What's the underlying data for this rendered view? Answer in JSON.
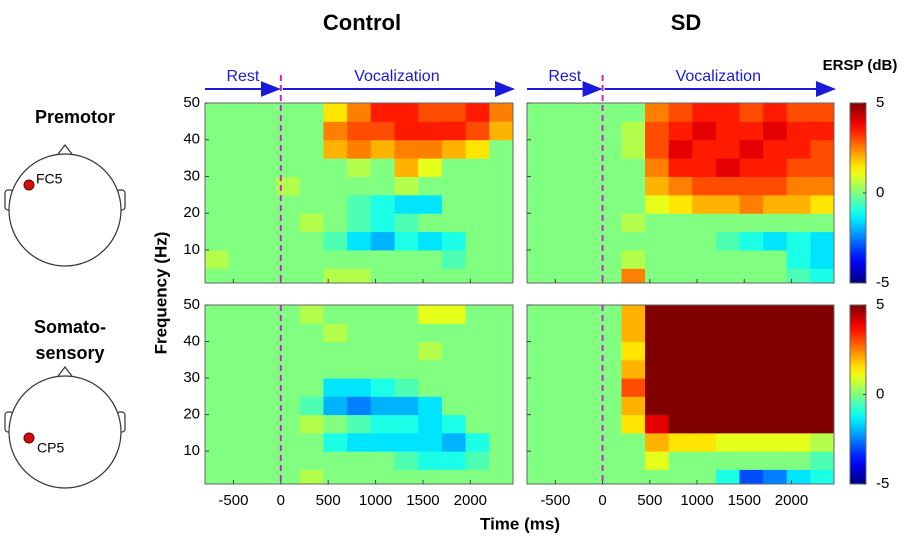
{
  "column_titles": [
    "Control",
    "SD"
  ],
  "row_labels": [
    {
      "lines": [
        "Premotor"
      ],
      "electrode": "FC5"
    },
    {
      "lines": [
        "Somato-",
        "sensory"
      ],
      "electrode": "CP5"
    }
  ],
  "phase_labels": [
    "Rest",
    "Vocalization"
  ],
  "x_label": "Time (ms)",
  "y_label": "Frequency (Hz)",
  "colorbar_title": "ERSP (dB)",
  "colorscale": {
    "clim": [
      -5,
      5
    ],
    "ticks": [
      -5,
      0,
      5
    ],
    "map": "jet"
  },
  "event_time": 0,
  "chart_data": [
    {
      "type": "heatmap",
      "xlim": [
        -800,
        2450
      ],
      "ylim": [
        1,
        50
      ],
      "xticks": [
        -500,
        0,
        500,
        1000,
        1500,
        2000
      ],
      "yticks": [
        10,
        20,
        30,
        40,
        50
      ],
      "xtick_labels": false,
      "ytick_labels": true,
      "colorbar": false,
      "phase_arrows": true,
      "xbins": [
        -800,
        -550,
        -300,
        -50,
        200,
        450,
        700,
        950,
        1200,
        1450,
        1700,
        1950,
        2200,
        2450
      ],
      "ybins": [
        1,
        5,
        10,
        15,
        20,
        25,
        30,
        35,
        40,
        45,
        50
      ],
      "values": [
        [
          0,
          0,
          0,
          0,
          0,
          0.5,
          0.5,
          0,
          0,
          0,
          0,
          0,
          0
        ],
        [
          0.5,
          0,
          0,
          0,
          0,
          0,
          0,
          0,
          0,
          0,
          -0.5,
          0,
          0
        ],
        [
          0,
          0,
          0,
          0,
          0,
          -0.5,
          -1.5,
          -2,
          -1,
          -1.5,
          -1,
          0,
          0
        ],
        [
          0,
          0,
          0,
          0,
          0.5,
          0,
          -0.5,
          -1,
          -0.5,
          0,
          0,
          0,
          0
        ],
        [
          0,
          0,
          0,
          0,
          0,
          0,
          -0.5,
          -1,
          -1.5,
          -1.5,
          0,
          0,
          0
        ],
        [
          0,
          0,
          0,
          0.5,
          0,
          0,
          0,
          0,
          0.5,
          0,
          0,
          0,
          0
        ],
        [
          0,
          0,
          0,
          0,
          0,
          0,
          0.5,
          0,
          2,
          1,
          0,
          0,
          0
        ],
        [
          0,
          0,
          0,
          0,
          0,
          2,
          2.5,
          2,
          2.5,
          2.5,
          2,
          1.5,
          0
        ],
        [
          0,
          0,
          0,
          0,
          0,
          2.5,
          3,
          3,
          3.5,
          3.5,
          3.5,
          3,
          2
        ],
        [
          0,
          0,
          0,
          0,
          0,
          1.5,
          2.5,
          3.5,
          3.5,
          3,
          3,
          3.5,
          2.5
        ]
      ]
    },
    {
      "type": "heatmap",
      "xlim": [
        -800,
        2450
      ],
      "ylim": [
        1,
        50
      ],
      "xticks": [
        -500,
        0,
        500,
        1000,
        1500,
        2000
      ],
      "yticks": [
        10,
        20,
        30,
        40,
        50
      ],
      "xtick_labels": false,
      "ytick_labels": false,
      "colorbar": true,
      "phase_arrows": true,
      "xbins": [
        -800,
        -550,
        -300,
        -50,
        200,
        450,
        700,
        950,
        1200,
        1450,
        1700,
        1950,
        2200,
        2450
      ],
      "ybins": [
        1,
        5,
        10,
        15,
        20,
        25,
        30,
        35,
        40,
        45,
        50
      ],
      "values": [
        [
          0,
          0,
          0,
          0,
          2.5,
          0,
          0,
          0,
          0,
          0,
          0,
          -0.5,
          -1
        ],
        [
          0,
          0,
          0,
          0,
          0.5,
          0,
          0,
          0,
          0,
          0,
          0,
          -1,
          -1.5
        ],
        [
          0,
          0,
          0,
          0,
          0,
          0,
          0,
          0,
          -0.5,
          -1,
          -1.5,
          -1,
          -1.5
        ],
        [
          0,
          0,
          0,
          0,
          0.5,
          0,
          0,
          0,
          0,
          0,
          0,
          0,
          0
        ],
        [
          0,
          0,
          0,
          0,
          0,
          1,
          1.5,
          2,
          2,
          2.5,
          2,
          2,
          1.5
        ],
        [
          0,
          0,
          0,
          0,
          0,
          2,
          2.5,
          3,
          3,
          3,
          3,
          2.5,
          2.5
        ],
        [
          0,
          0,
          0,
          0,
          0,
          2.5,
          3.5,
          3.5,
          4,
          3.5,
          3.5,
          3,
          3
        ],
        [
          0,
          0,
          0,
          0,
          0.5,
          3,
          4,
          3.5,
          3.5,
          4,
          3.5,
          3.5,
          3
        ],
        [
          0,
          0,
          0,
          0,
          0.5,
          3,
          3.5,
          4,
          3.5,
          3.5,
          4,
          3.5,
          3.5
        ],
        [
          0,
          0,
          0,
          0,
          0,
          2.5,
          3,
          3.5,
          3.5,
          3,
          3.5,
          3,
          3
        ]
      ]
    },
    {
      "type": "heatmap",
      "xlim": [
        -800,
        2450
      ],
      "ylim": [
        1,
        50
      ],
      "xticks": [
        -500,
        0,
        500,
        1000,
        1500,
        2000
      ],
      "yticks": [
        10,
        20,
        30,
        40,
        50
      ],
      "xtick_labels": true,
      "ytick_labels": true,
      "colorbar": false,
      "phase_arrows": false,
      "xbins": [
        -800,
        -550,
        -300,
        -50,
        200,
        450,
        700,
        950,
        1200,
        1450,
        1700,
        1950,
        2200,
        2450
      ],
      "ybins": [
        1,
        5,
        10,
        15,
        20,
        25,
        30,
        35,
        40,
        45,
        50
      ],
      "values": [
        [
          0,
          0,
          0,
          0,
          0.5,
          0,
          0,
          0,
          0,
          0,
          0,
          0,
          0
        ],
        [
          0,
          0,
          0,
          0,
          0,
          0,
          0,
          0,
          -0.5,
          -1,
          -1,
          -0.5,
          0
        ],
        [
          0,
          0,
          0,
          0,
          0,
          -1,
          -1.5,
          -1.5,
          -1.5,
          -1.5,
          -2,
          -1,
          0
        ],
        [
          0,
          0,
          0,
          0,
          0.5,
          0,
          -0.5,
          -1,
          -1,
          -1.5,
          -1,
          0,
          0
        ],
        [
          0,
          0,
          0,
          0,
          -0.5,
          -2,
          -2.5,
          -2,
          -2,
          -1.5,
          0,
          0,
          0
        ],
        [
          0,
          0,
          0,
          0,
          0,
          -1.5,
          -1.5,
          -1,
          -0.5,
          0,
          0,
          0,
          0
        ],
        [
          0,
          0,
          0,
          0,
          0,
          0,
          0,
          0,
          0,
          0,
          0,
          0,
          0
        ],
        [
          0,
          0,
          0,
          0,
          0,
          0,
          0,
          0,
          0,
          0.5,
          0,
          0,
          0
        ],
        [
          0,
          0,
          0,
          0,
          0,
          0.5,
          0,
          0,
          0,
          0,
          0,
          0,
          0
        ],
        [
          0,
          0,
          0,
          0,
          0.5,
          0,
          0,
          0,
          0,
          1,
          1,
          0,
          0
        ]
      ]
    },
    {
      "type": "heatmap",
      "xlim": [
        -800,
        2450
      ],
      "ylim": [
        1,
        50
      ],
      "xticks": [
        -500,
        0,
        500,
        1000,
        1500,
        2000
      ],
      "yticks": [
        10,
        20,
        30,
        40,
        50
      ],
      "xtick_labels": true,
      "ytick_labels": false,
      "colorbar": true,
      "phase_arrows": false,
      "xbins": [
        -800,
        -550,
        -300,
        -50,
        200,
        450,
        700,
        950,
        1200,
        1450,
        1700,
        1950,
        2200,
        2450
      ],
      "ybins": [
        1,
        5,
        10,
        15,
        20,
        25,
        30,
        35,
        40,
        45,
        50
      ],
      "values": [
        [
          0,
          0,
          0,
          0,
          0,
          0,
          0,
          0,
          -1,
          -3,
          -2.5,
          -1.5,
          -1
        ],
        [
          0,
          0,
          0,
          0,
          0,
          1,
          0,
          0,
          0,
          0,
          0,
          0,
          -0.5
        ],
        [
          0,
          0,
          0,
          0,
          0,
          2,
          1.5,
          1.5,
          1,
          1,
          1,
          1,
          0.5
        ],
        [
          0,
          0,
          0,
          0,
          1.5,
          4,
          5,
          5,
          5,
          5,
          5,
          5,
          5
        ],
        [
          0,
          0,
          0,
          0,
          2,
          5,
          5,
          5,
          5,
          5,
          5,
          5,
          5
        ],
        [
          0,
          0,
          0,
          0,
          3,
          5,
          5,
          5,
          5,
          5,
          5,
          5,
          5
        ],
        [
          0,
          0,
          0,
          0,
          2,
          5,
          5,
          5,
          5,
          5,
          5,
          5,
          5
        ],
        [
          0,
          0,
          0,
          0,
          1.5,
          5,
          5,
          5,
          5,
          5,
          5,
          5,
          5
        ],
        [
          0,
          0,
          0,
          0,
          2,
          5,
          5,
          5,
          5,
          5,
          5,
          5,
          5
        ],
        [
          0,
          0,
          0,
          0,
          2,
          5,
          5,
          5,
          5,
          5,
          5,
          5,
          5
        ]
      ]
    }
  ]
}
